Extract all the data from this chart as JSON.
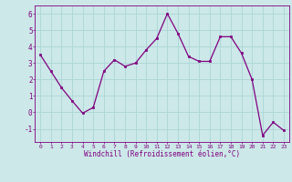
{
  "x": [
    0,
    1,
    2,
    3,
    4,
    5,
    6,
    7,
    8,
    9,
    10,
    11,
    12,
    13,
    14,
    15,
    16,
    17,
    18,
    19,
    20,
    21,
    22,
    23
  ],
  "y": [
    3.5,
    2.5,
    1.5,
    0.7,
    -0.05,
    0.3,
    2.5,
    3.2,
    2.8,
    3.0,
    3.8,
    4.5,
    6.0,
    4.8,
    3.4,
    3.1,
    3.1,
    4.6,
    4.6,
    3.6,
    2.0,
    -1.4,
    -0.6,
    -1.1
  ],
  "line_color": "#800080",
  "marker_color": "#800080",
  "bg_color": "#cce8e8",
  "grid_color": "#b0d8d8",
  "xlabel": "Windchill (Refroidissement éolien,°C)",
  "tick_color": "#800080",
  "xlim": [
    -0.5,
    23.5
  ],
  "ylim": [
    -1.8,
    6.5
  ],
  "yticks": [
    -1,
    0,
    1,
    2,
    3,
    4,
    5,
    6
  ],
  "xticks": [
    0,
    1,
    2,
    3,
    4,
    5,
    6,
    7,
    8,
    9,
    10,
    11,
    12,
    13,
    14,
    15,
    16,
    17,
    18,
    19,
    20,
    21,
    22,
    23
  ],
  "figsize": [
    3.2,
    2.0
  ],
  "dpi": 100
}
